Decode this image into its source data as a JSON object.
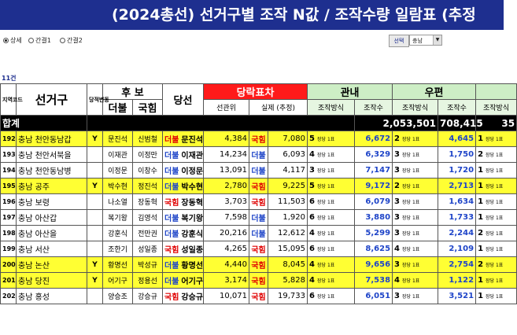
{
  "title": "(2024총선) 선거구별 조작 N값 / 조작수량 일람표 (추정",
  "controls": {
    "radios": [
      {
        "label": "상세",
        "selected": true
      },
      {
        "label": "간결1",
        "selected": false
      },
      {
        "label": "간결2",
        "selected": false
      }
    ],
    "select_button": "선택",
    "dropdown_value": "충남"
  },
  "count_label": "11건",
  "headers": {
    "region_code": "지역코드",
    "district": "선거구",
    "party_change": "당적변동",
    "candidate": "후 보",
    "cand_dem": "더불",
    "cand_ppp": "국힘",
    "winner": "당선",
    "diff": "당락표차",
    "diff_rank": "선관위",
    "diff_actual": "실제 (추정)",
    "domestic": "관내",
    "postal": "우편",
    "method": "조작방식",
    "count": "조작수"
  },
  "total": {
    "label": "합계",
    "domestic": "2,053,501",
    "postal": "708,415",
    "next": "35"
  },
  "rows": [
    {
      "no": "192",
      "highlight": true,
      "district": "충남 천안동남갑",
      "y": "Y",
      "dem": "문진석",
      "ppp": "신범철",
      "win_party": "더불",
      "win_party_color": "red",
      "winner": "문진석",
      "diff_nec": "4,384",
      "actual_party": "국힘",
      "actual_color": "red",
      "diff_actual": "7,080",
      "d_method": "5",
      "d_count": "6,672",
      "p_method": "2",
      "p_count": "4,645",
      "n_method": "1"
    },
    {
      "no": "193",
      "highlight": false,
      "district": "충남 천안서북을",
      "y": "",
      "dem": "이재관",
      "ppp": "이정만",
      "win_party": "더불",
      "win_party_color": "blue",
      "winner": "이재관",
      "diff_nec": "14,234",
      "actual_party": "더불",
      "actual_color": "blue",
      "diff_actual": "6,093",
      "d_method": "4",
      "d_count": "6,329",
      "p_method": "3",
      "p_count": "1,750",
      "n_method": "2"
    },
    {
      "no": "194",
      "highlight": false,
      "district": "충남 천안동남병",
      "y": "",
      "dem": "이정문",
      "ppp": "이창수",
      "win_party": "더불",
      "win_party_color": "blue",
      "winner": "이정문",
      "diff_nec": "13,091",
      "actual_party": "더불",
      "actual_color": "blue",
      "diff_actual": "4,117",
      "d_method": "3",
      "d_count": "7,147",
      "p_method": "3",
      "p_count": "1,720",
      "n_method": "1"
    },
    {
      "no": "195",
      "highlight": true,
      "district": "충남 공주",
      "y": "Y",
      "dem": "박수현",
      "ppp": "정진석",
      "win_party": "더불",
      "win_party_color": "blue",
      "winner": "박수현",
      "diff_nec": "2,780",
      "actual_party": "국힘",
      "actual_color": "red",
      "diff_actual": "9,225",
      "d_method": "5",
      "d_count": "9,172",
      "p_method": "2",
      "p_count": "2,713",
      "n_method": "1"
    },
    {
      "no": "196",
      "highlight": false,
      "district": "충남 보령",
      "y": "",
      "dem": "나소열",
      "ppp": "장동혁",
      "win_party": "국힘",
      "win_party_color": "red",
      "winner": "장동혁",
      "diff_nec": "3,703",
      "actual_party": "국힘",
      "actual_color": "red",
      "diff_actual": "11,503",
      "d_method": "6",
      "d_count": "6,079",
      "p_method": "3",
      "p_count": "1,634",
      "n_method": "1"
    },
    {
      "no": "197",
      "highlight": false,
      "district": "충남 아산갑",
      "y": "",
      "dem": "복기왕",
      "ppp": "김영석",
      "win_party": "더불",
      "win_party_color": "blue",
      "winner": "복기왕",
      "diff_nec": "7,598",
      "actual_party": "더불",
      "actual_color": "blue",
      "diff_actual": "1,920",
      "d_method": "6",
      "d_count": "3,880",
      "p_method": "3",
      "p_count": "1,733",
      "n_method": "1"
    },
    {
      "no": "198",
      "highlight": false,
      "district": "충남 아산을",
      "y": "",
      "dem": "강훈식",
      "ppp": "전만권",
      "win_party": "더불",
      "win_party_color": "blue",
      "winner": "강훈식",
      "diff_nec": "20,216",
      "actual_party": "더불",
      "actual_color": "blue",
      "diff_actual": "12,612",
      "d_method": "4",
      "d_count": "5,299",
      "p_method": "3",
      "p_count": "2,244",
      "n_method": "2"
    },
    {
      "no": "199",
      "highlight": false,
      "district": "충남 서산",
      "y": "",
      "dem": "조한기",
      "ppp": "성일종",
      "win_party": "국힘",
      "win_party_color": "red",
      "winner": "성일종",
      "diff_nec": "4,265",
      "actual_party": "국힘",
      "actual_color": "red",
      "diff_actual": "15,095",
      "d_method": "6",
      "d_count": "8,625",
      "p_method": "4",
      "p_count": "2,109",
      "n_method": "1"
    },
    {
      "no": "200",
      "highlight": true,
      "district": "충남 논산",
      "y": "Y",
      "dem": "황명선",
      "ppp": "박성규",
      "win_party": "더불",
      "win_party_color": "blue",
      "winner": "황명선",
      "diff_nec": "4,440",
      "actual_party": "국힘",
      "actual_color": "red",
      "diff_actual": "8,045",
      "d_method": "4",
      "d_count": "9,656",
      "p_method": "3",
      "p_count": "2,754",
      "n_method": "2"
    },
    {
      "no": "201",
      "highlight": true,
      "district": "충남 당진",
      "y": "Y",
      "dem": "어기구",
      "ppp": "정용선",
      "win_party": "더불",
      "win_party_color": "blue",
      "winner": "어기구",
      "diff_nec": "3,174",
      "actual_party": "국힘",
      "actual_color": "red",
      "diff_actual": "5,828",
      "d_method": "4",
      "d_count": "7,538",
      "p_method": "4",
      "p_count": "1,122",
      "n_method": "1"
    },
    {
      "no": "202",
      "highlight": false,
      "district": "충남 홍성",
      "y": "",
      "dem": "양승조",
      "ppp": "강승규",
      "win_party": "국힘",
      "win_party_color": "red",
      "winner": "강승규",
      "diff_nec": "10,071",
      "actual_party": "국힘",
      "actual_color": "red",
      "diff_actual": "19,733",
      "d_method": "6",
      "d_count": "6,051",
      "p_method": "3",
      "p_count": "3,521",
      "n_method": "1"
    }
  ],
  "method_suffix": "장당 1표"
}
